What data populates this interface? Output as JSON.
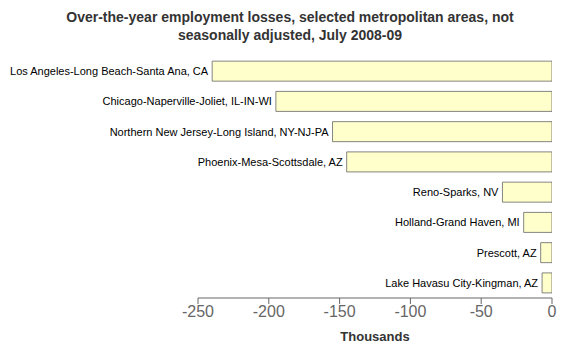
{
  "chart_data": {
    "type": "bar",
    "title": "Over-the-year employment losses, selected metropolitan areas, not\nseasonally adjusted, July 2008-09",
    "categories": [
      "Lake Havasu City-Kingman, AZ",
      "Prescott, AZ",
      "Holland-Grand Haven, MI",
      "Reno-Sparks, NV",
      "Phoenix-Mesa-Scottsdale, AZ",
      "Northern New Jersey-Long Island, NY-NJ-PA",
      "Chicago-Naperville-Joliet, IL-IN-WI",
      "Los Angeles-Long Beach-Santa Ana, CA"
    ],
    "values": [
      -7,
      -8,
      -20,
      -35,
      -145,
      -155,
      -195,
      -240
    ],
    "color": "#ffffcc",
    "orientation": "horizontal",
    "xlabel": "Thousands",
    "xlim": [
      -250,
      0
    ],
    "xticks": [
      -250,
      -200,
      -150,
      -100,
      -50,
      0
    ],
    "tick_labels": "x"
  }
}
